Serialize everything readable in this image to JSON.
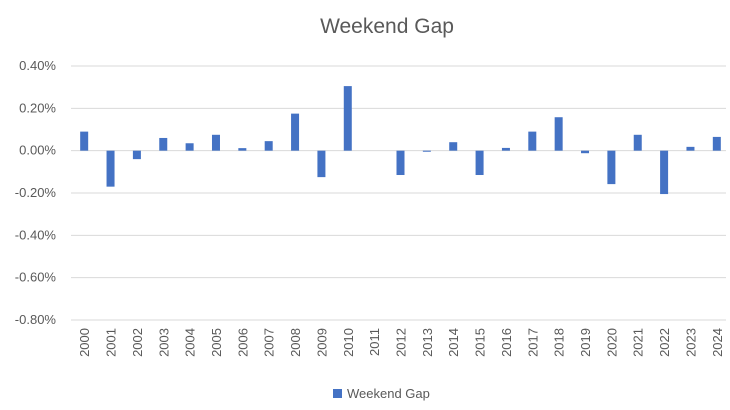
{
  "chart_data": {
    "type": "bar",
    "title": "Weekend Gap",
    "xlabel": "",
    "ylabel": "",
    "categories": [
      "2000",
      "2001",
      "2002",
      "2003",
      "2004",
      "2005",
      "2006",
      "2007",
      "2008",
      "2009",
      "2010",
      "2011",
      "2012",
      "2013",
      "2014",
      "2015",
      "2016",
      "2017",
      "2018",
      "2019",
      "2020",
      "2021",
      "2022",
      "2023",
      "2024"
    ],
    "series": [
      {
        "name": "Weekend Gap",
        "color": "#4472c4",
        "values": [
          0.09,
          -0.17,
          -0.04,
          0.06,
          0.035,
          0.075,
          0.012,
          0.045,
          0.175,
          -0.125,
          0.305,
          0.0,
          -0.115,
          -0.005,
          0.04,
          -0.115,
          0.013,
          0.09,
          0.158,
          -0.012,
          -0.158,
          0.075,
          -0.205,
          0.018,
          0.065
        ]
      }
    ],
    "ylim": [
      -0.8,
      0.4
    ],
    "yticks": [
      0.4,
      0.2,
      0.0,
      -0.2,
      -0.4,
      -0.6,
      -0.8
    ],
    "ytick_labels": [
      "0.40%",
      "0.20%",
      "0.00%",
      "-0.20%",
      "-0.40%",
      "-0.60%",
      "-0.80%"
    ],
    "grid": true,
    "legend_position": "bottom"
  }
}
